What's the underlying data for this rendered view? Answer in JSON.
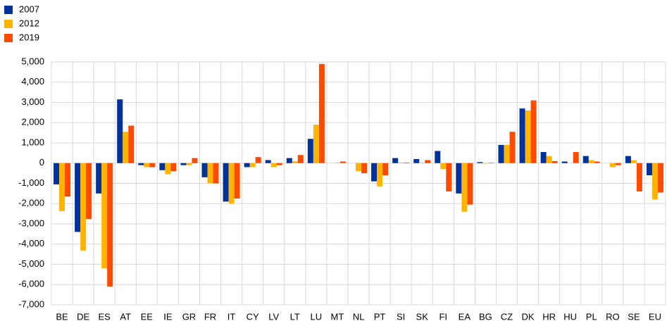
{
  "chart_data": {
    "type": "bar",
    "categories": [
      "BE",
      "DE",
      "ES",
      "AT",
      "EE",
      "IE",
      "GR",
      "FR",
      "IT",
      "CY",
      "LV",
      "LT",
      "LU",
      "MT",
      "NL",
      "PT",
      "SI",
      "SK",
      "FI",
      "EA",
      "BG",
      "CZ",
      "DK",
      "HR",
      "HU",
      "PL",
      "RO",
      "SE",
      "EU"
    ],
    "series": [
      {
        "name": "2007",
        "color": "#003299",
        "values": [
          -1050,
          -3400,
          -1500,
          3150,
          -100,
          -350,
          -100,
          -700,
          -1900,
          -200,
          150,
          250,
          1200,
          0,
          0,
          -900,
          250,
          200,
          600,
          -1500,
          50,
          900,
          2700,
          550,
          80,
          350,
          0,
          350,
          -600
        ]
      },
      {
        "name": "2012",
        "color": "#ffb400",
        "values": [
          -2370,
          -4330,
          -5200,
          1550,
          -200,
          -550,
          -100,
          -1000,
          -2000,
          -200,
          -200,
          100,
          1900,
          20,
          -400,
          -1150,
          30,
          20,
          -300,
          -2400,
          -20,
          900,
          2600,
          350,
          0,
          150,
          -200,
          150,
          -1800
        ]
      },
      {
        "name": "2019",
        "color": "#ff4b00",
        "values": [
          -1650,
          -2760,
          -6100,
          1850,
          -200,
          -400,
          250,
          -1000,
          -1750,
          300,
          -100,
          400,
          4900,
          80,
          -500,
          -600,
          30,
          150,
          -1400,
          -2050,
          20,
          1550,
          3100,
          100,
          550,
          80,
          -100,
          -1400,
          -1450
        ]
      }
    ],
    "ylim": [
      -7000,
      5000
    ],
    "yticks": [
      {
        "value": -7000,
        "label": "-7,000"
      },
      {
        "value": -6000,
        "label": "-6,000"
      },
      {
        "value": -5000,
        "label": "-5,000"
      },
      {
        "value": -4000,
        "label": "-4,000"
      },
      {
        "value": -3000,
        "label": "-3,000"
      },
      {
        "value": -2000,
        "label": "-2,000"
      },
      {
        "value": -1000,
        "label": "-1,000"
      },
      0,
      {
        "value": 1000,
        "label": "1,000"
      },
      {
        "value": 2000,
        "label": "2,000"
      },
      {
        "value": 3000,
        "label": "3,000"
      },
      {
        "value": 4000,
        "label": "4,000"
      },
      {
        "value": 5000,
        "label": "5,000"
      }
    ],
    "grid": true,
    "legend": "top-left"
  }
}
